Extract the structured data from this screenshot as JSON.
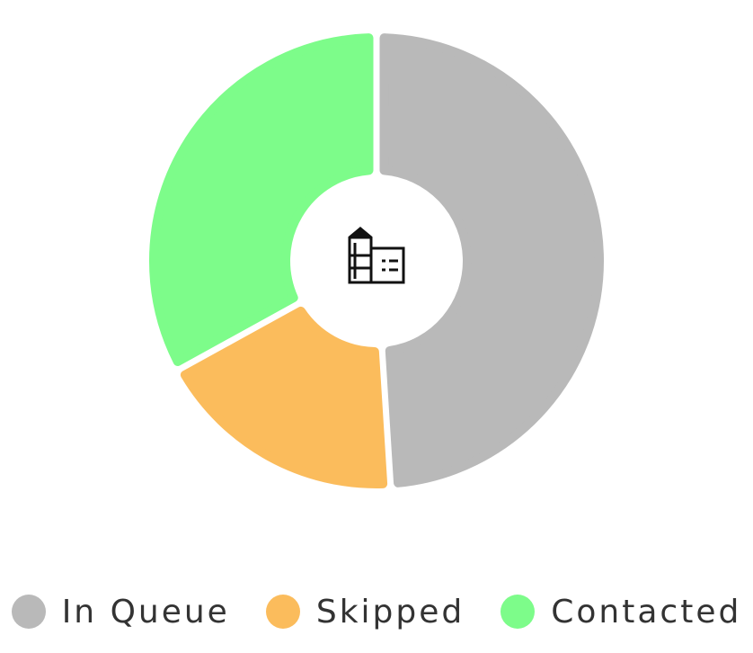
{
  "chart_data": {
    "type": "pie",
    "style": "donut",
    "categories": [
      "In Queue",
      "Skipped",
      "Contacted"
    ],
    "values": [
      49,
      18,
      33
    ],
    "colors": [
      "#b9b9b9",
      "#fbbc5c",
      "#7dfc8a"
    ],
    "legend_position": "bottom",
    "center_icon": "office-building-icon"
  },
  "legend": [
    {
      "label": "In Queue",
      "color": "#b9b9b9"
    },
    {
      "label": "Skipped",
      "color": "#fbbc5c"
    },
    {
      "label": "Contacted",
      "color": "#7dfc8a"
    }
  ]
}
